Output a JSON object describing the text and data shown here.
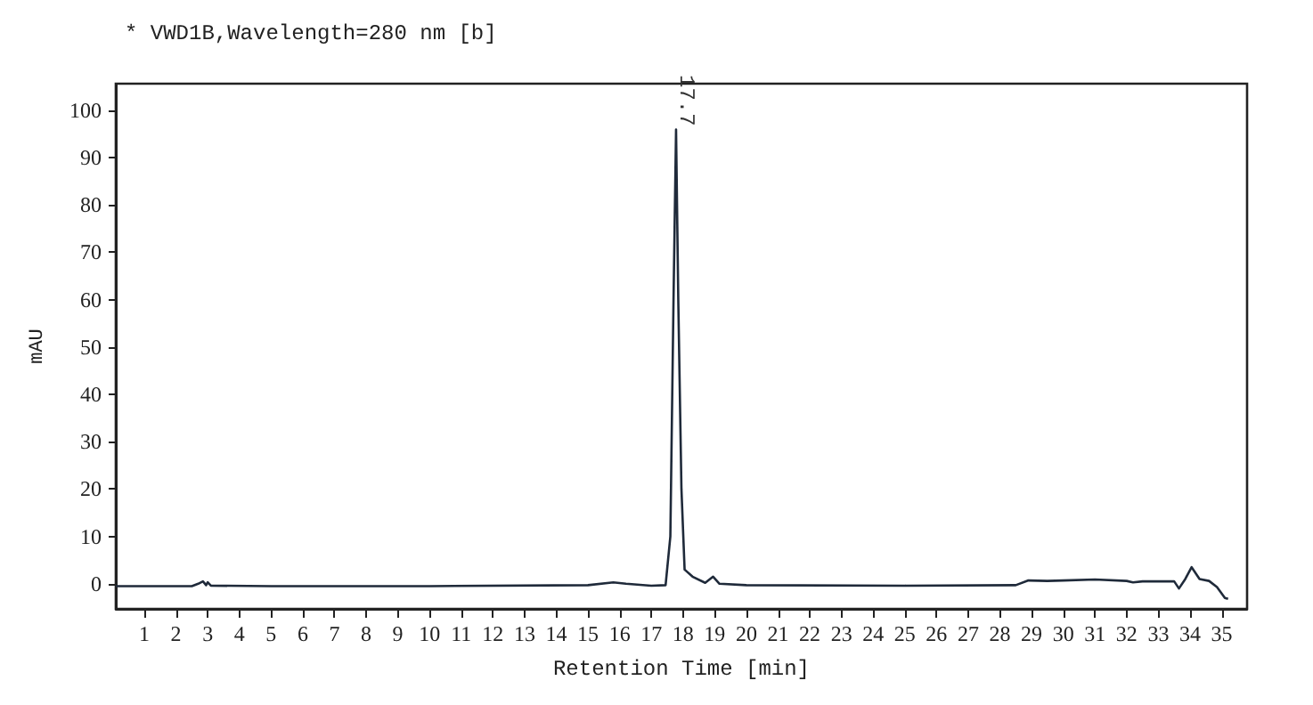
{
  "chart_data": {
    "type": "line",
    "title": "* VWD1B,Wavelength=280 nm [b]",
    "xlabel": "Retention Time [min]",
    "ylabel": "mAU",
    "x": [
      0.1,
      2.5,
      2.7,
      2.85,
      2.95,
      3.0,
      3.1,
      5,
      10,
      15,
      15.8,
      16.2,
      17.0,
      17.45,
      17.6,
      17.7,
      17.78,
      17.85,
      17.95,
      18.05,
      18.3,
      18.7,
      18.95,
      19.15,
      20,
      25,
      28.5,
      28.9,
      29.5,
      30,
      31,
      32,
      32.2,
      32.5,
      33.5,
      33.65,
      33.85,
      34.05,
      34.3,
      34.6,
      34.85,
      35.1,
      35.2
    ],
    "series": [
      {
        "color": "#1f2a3a",
        "values": [
          -0.5,
          -0.5,
          0,
          0.5,
          -0.3,
          0.3,
          -0.4,
          -0.5,
          -0.5,
          -0.3,
          0.3,
          0,
          -0.4,
          -0.3,
          10,
          60,
          95.9,
          60,
          20,
          3,
          1.5,
          0.2,
          1.5,
          0,
          -0.3,
          -0.4,
          -0.3,
          0.7,
          0.6,
          0.7,
          0.9,
          0.6,
          0.3,
          0.5,
          0.5,
          -1,
          1,
          3.5,
          1,
          0.6,
          -0.7,
          -3,
          -3.2
        ]
      }
    ],
    "xlim": [
      0.1,
      35.8
    ],
    "ylim": [
      -5.3,
      105.6
    ],
    "xticks": [
      1,
      2,
      3,
      4,
      5,
      6,
      7,
      8,
      9,
      10,
      11,
      12,
      13,
      14,
      15,
      16,
      17,
      18,
      19,
      20,
      21,
      22,
      23,
      24,
      25,
      26,
      27,
      28,
      29,
      30,
      31,
      32,
      33,
      34,
      35
    ],
    "yticks": [
      0,
      10,
      20,
      30,
      40,
      50,
      60,
      70,
      80,
      90,
      100
    ],
    "annotations": [
      {
        "text": "17.7",
        "x": 17.7,
        "y": 95.9
      }
    ],
    "grid": false,
    "marker": "none",
    "line_style": "solid"
  }
}
